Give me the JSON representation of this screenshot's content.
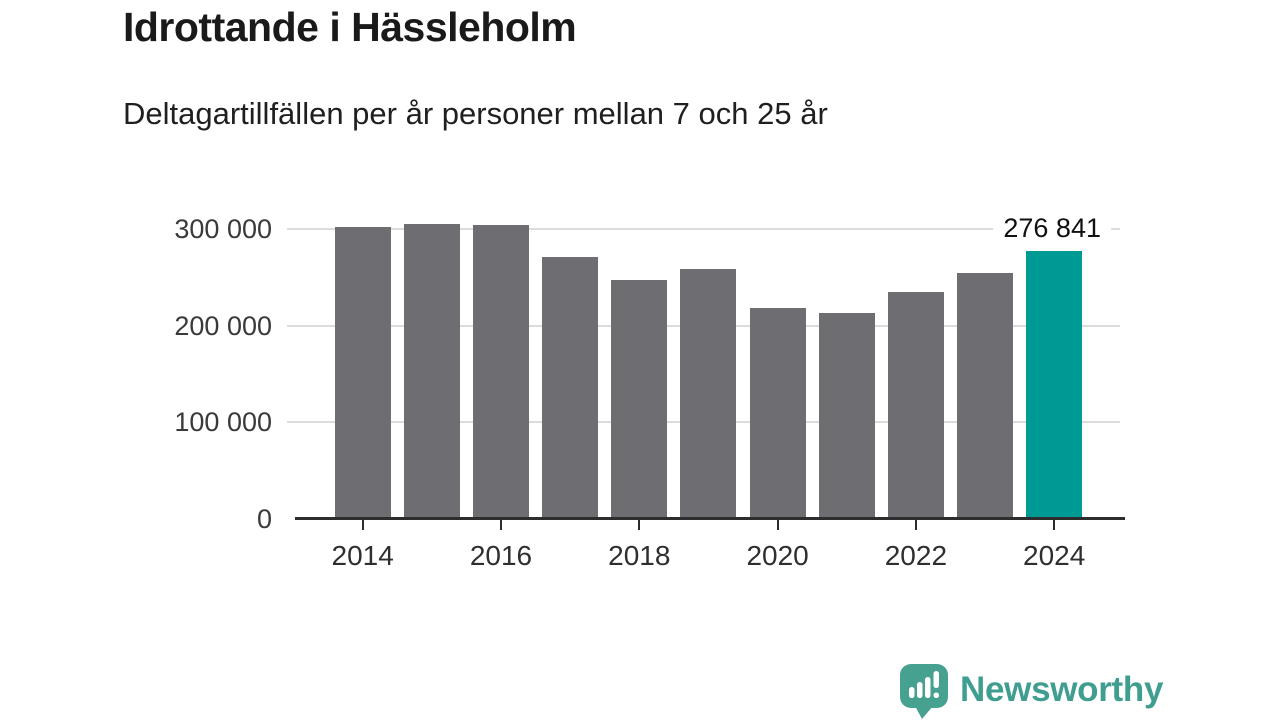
{
  "header": {
    "title": "Idrottande i Hässleholm",
    "subtitle": "Deltagartillfällen per år personer mellan 7 och 25 år"
  },
  "chart_data": {
    "type": "bar",
    "title": "Idrottande i Hässleholm",
    "subtitle": "Deltagartillfällen per år personer mellan 7 och 25 år",
    "xlabel": "",
    "ylabel": "",
    "categories": [
      "2014",
      "2015",
      "2016",
      "2017",
      "2018",
      "2019",
      "2020",
      "2021",
      "2022",
      "2023",
      "2024"
    ],
    "values": [
      302000,
      305000,
      304000,
      271000,
      247000,
      259000,
      218000,
      213000,
      235000,
      255000,
      276841
    ],
    "highlight_index": 10,
    "highlight_label": "276 841",
    "ylim": [
      0,
      310000
    ],
    "yticks": [
      {
        "value": 0,
        "label": "0"
      },
      {
        "value": 100000,
        "label": "100 000"
      },
      {
        "value": 200000,
        "label": "200 000"
      },
      {
        "value": 300000,
        "label": "300 000"
      }
    ],
    "xtick_years": [
      "2014",
      "2016",
      "2018",
      "2020",
      "2022",
      "2024"
    ],
    "grid": true,
    "legend": "none",
    "colors": {
      "bar": "#6e6d71",
      "highlight": "#009a95",
      "grid": "#dcdcdc",
      "axis": "#2d2d2d"
    }
  },
  "footer": {
    "brand": "Newsworthy",
    "logo_icon": "newsworthy-speech-bubble-bar-chart-icon",
    "brand_color": "#3f9e90"
  }
}
